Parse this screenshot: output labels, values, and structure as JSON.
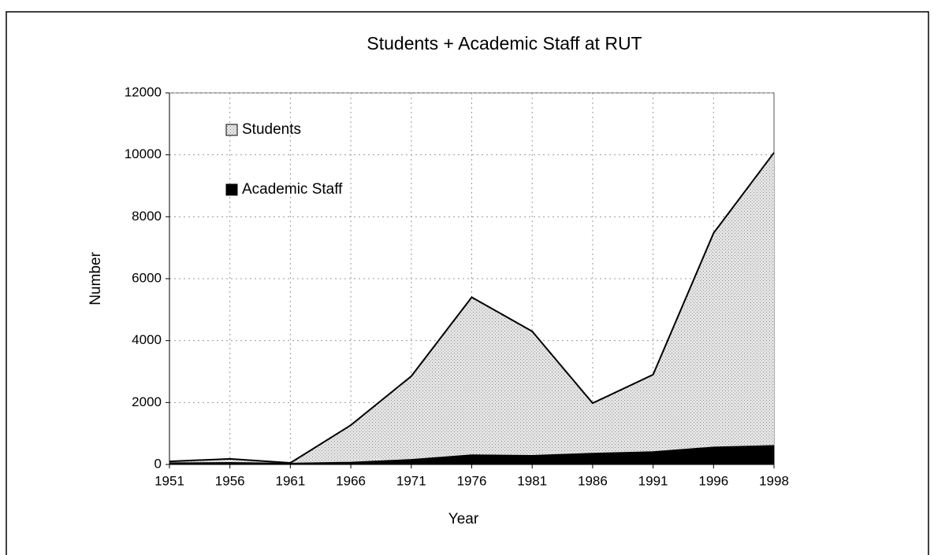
{
  "chart_data": {
    "type": "area",
    "title": "Students + Academic Staff at RUT",
    "x_label": "Year",
    "y_label": "Number",
    "categories": [
      "1951",
      "1956",
      "1961",
      "1966",
      "1971",
      "1976",
      "1981",
      "1986",
      "1991",
      "1996",
      "1998"
    ],
    "series": [
      {
        "name": "Students",
        "color": "#c8c8c8",
        "values": [
          100,
          180,
          50,
          1270,
          2850,
          5400,
          4300,
          1980,
          2900,
          7470,
          10070
        ]
      },
      {
        "name": "Academic Staff",
        "color": "#000000",
        "values": [
          40,
          50,
          30,
          60,
          150,
          300,
          280,
          350,
          400,
          550,
          600
        ]
      }
    ],
    "ylim": [
      0,
      12000
    ],
    "yticks": [
      0,
      2000,
      4000,
      6000,
      8000,
      10000,
      12000
    ],
    "grid": true,
    "legend": "top-left"
  }
}
